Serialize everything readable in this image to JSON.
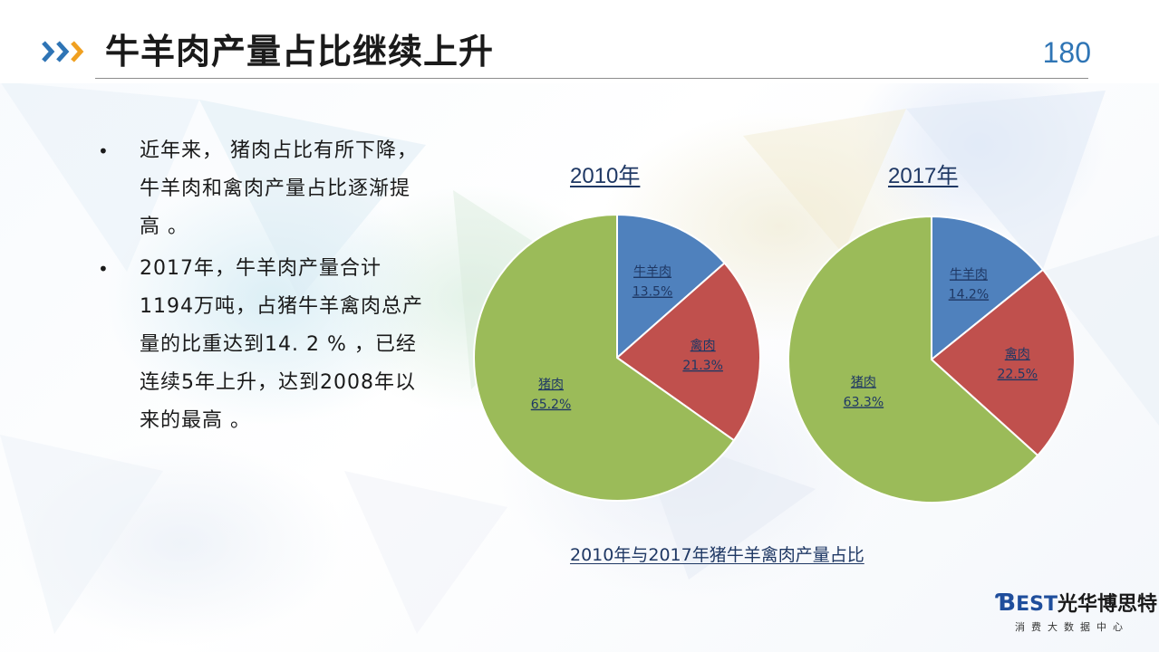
{
  "header": {
    "title": "牛羊肉产量占比继续上升",
    "page_number": "180"
  },
  "bullets": [
    "近年来， 猪肉占比有所下降，牛羊肉和禽肉产量占比逐渐提高 。",
    "2017年，牛羊肉产量合计1194万吨，占猪牛羊禽肉总产量的比重达到14. 2 % ，已经连续5年上升，达到2008年以来的最高 。"
  ],
  "bullet_symbol": "•",
  "caption": "2010年与2017年猪牛羊禽肉产量占比",
  "chart_data": [
    {
      "type": "pie",
      "title": "2010年",
      "slices": [
        {
          "label": "牛羊肉",
          "value": 13.5,
          "value_text": "13.5%",
          "color": "#4f81bd"
        },
        {
          "label": "禽肉",
          "value": 21.3,
          "value_text": "21.3%",
          "color": "#c0504d"
        },
        {
          "label": "猪肉",
          "value": 65.2,
          "value_text": "65.2%",
          "color": "#9bbb59"
        }
      ]
    },
    {
      "type": "pie",
      "title": "2017年",
      "slices": [
        {
          "label": "牛羊肉",
          "value": 14.2,
          "value_text": "14.2%",
          "color": "#4f81bd"
        },
        {
          "label": "禽肉",
          "value": 22.5,
          "value_text": "22.5%",
          "color": "#c0504d"
        },
        {
          "label": "猪肉",
          "value": 63.3,
          "value_text": "63.3%",
          "color": "#9bbb59"
        }
      ]
    }
  ],
  "logo": {
    "brand_letters": "EST",
    "brand_name": "光华博思特",
    "tagline": "消费大数据中心"
  },
  "colors": {
    "accent_blue": "#2f75b5",
    "arrow_orange": "#f0a020",
    "arrow_blue": "#2e74b5"
  }
}
